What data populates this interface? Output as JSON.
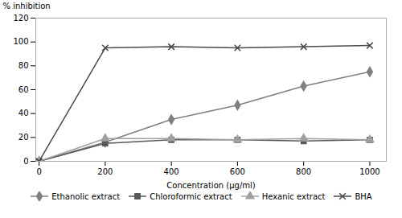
{
  "chart_data": {
    "type": "line",
    "x": [
      0,
      200,
      400,
      600,
      800,
      1000
    ],
    "series": [
      {
        "name": "Ethanolic extract",
        "color": "#7f7f7f",
        "marker": "diamond",
        "values": [
          0,
          16,
          35,
          47,
          63,
          75
        ]
      },
      {
        "name": "Chloroformic extract",
        "color": "#595959",
        "marker": "square",
        "values": [
          0,
          15,
          18,
          18,
          17,
          18
        ]
      },
      {
        "name": "Hexanic extract",
        "color": "#a0a0a0",
        "marker": "triangle",
        "values": [
          0,
          19,
          19,
          18,
          19,
          18
        ]
      },
      {
        "name": "BHA",
        "color": "#4a4a4a",
        "marker": "times",
        "values": [
          0,
          95,
          96,
          95,
          96,
          97
        ]
      }
    ],
    "xlabel": "Concentration (μg/ml)",
    "ylabel": "% inhibition",
    "xlim": [
      -10,
      1050
    ],
    "ylim": [
      0,
      120
    ],
    "xticks": [
      0,
      200,
      400,
      600,
      800,
      1000
    ],
    "yticks": [
      0,
      20,
      40,
      60,
      80,
      100,
      120
    ],
    "grid": false,
    "legend": "bottom"
  }
}
